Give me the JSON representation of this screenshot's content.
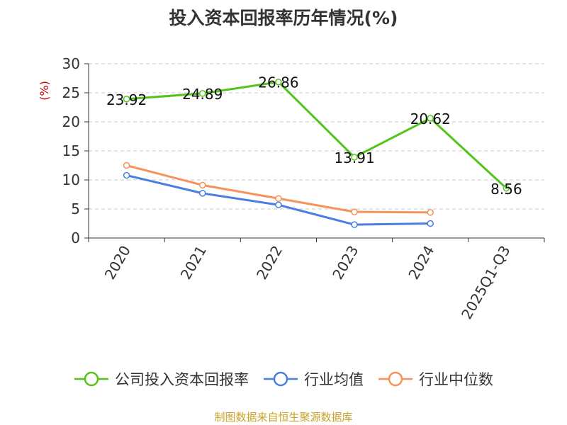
{
  "chart_data": {
    "type": "line",
    "title": "投入资本回报率历年情况(%)",
    "ylabel": "(%)",
    "categories": [
      "2020",
      "2021",
      "2022",
      "2023",
      "2024",
      "2025Q1-Q3"
    ],
    "ylim": [
      0,
      30
    ],
    "yticks": [
      0,
      5,
      10,
      15,
      20,
      25,
      30
    ],
    "grid": true,
    "legend_position": "bottom",
    "series": [
      {
        "name": "公司投入资本回报率",
        "color": "#52c41a",
        "values": [
          23.92,
          24.89,
          26.86,
          13.91,
          20.62,
          8.56
        ],
        "labels": [
          "23.92",
          "24.89",
          "26.86",
          "13.91",
          "20.62",
          "8.56"
        ]
      },
      {
        "name": "行业均值",
        "color": "#4a7fe0",
        "values": [
          10.8,
          7.7,
          5.7,
          2.3,
          2.5,
          null
        ]
      },
      {
        "name": "行业中位数",
        "color": "#f7935a",
        "values": [
          12.5,
          9.1,
          6.8,
          4.5,
          4.4,
          null
        ]
      }
    ],
    "source": "制图数据来自恒生聚源数据库"
  }
}
